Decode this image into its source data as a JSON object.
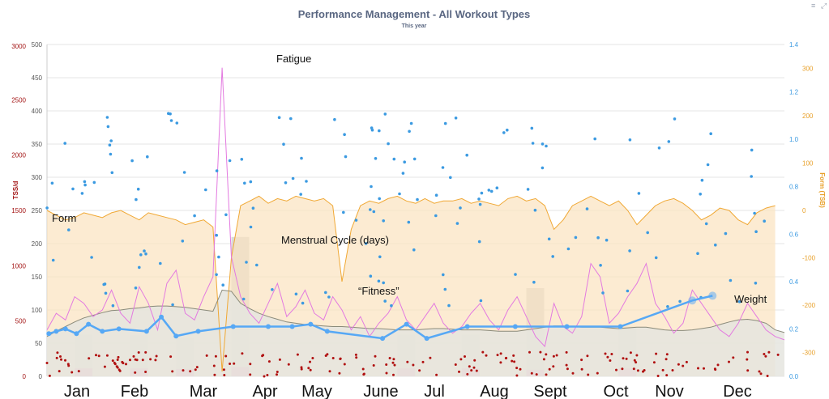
{
  "toolbar": {
    "menu_icon": "menu-icon",
    "expand_icon": "expand-icon",
    "menu_glyph": "≡",
    "expand_glyph": "⤢"
  },
  "chart_data": {
    "type": "line",
    "title": "Performance Management - All Workout Types",
    "subtitle": "This year",
    "months": [
      "Jan",
      "Feb",
      "Mar",
      "Apr",
      "May",
      "June",
      "Jul",
      "Aug",
      "Sept",
      "Oct",
      "Nov",
      "Dec"
    ],
    "axes": {
      "left_outer": {
        "label": "TSS/d",
        "ticks": [
          0,
          500,
          1000,
          1500,
          2000,
          2500,
          3000
        ],
        "range": [
          0,
          3000
        ],
        "color": "#a31515"
      },
      "left_inner": {
        "ticks": [
          0,
          50,
          100,
          150,
          200,
          250,
          300,
          350,
          400,
          450,
          500
        ],
        "range": [
          0,
          500
        ],
        "color": "#555555"
      },
      "right_inner": {
        "ticks": [
          0.0,
          0.2,
          0.4,
          0.6,
          0.8,
          1.0,
          1.2,
          1.4
        ],
        "range": [
          0,
          1.4
        ],
        "color": "#3b9ae1"
      },
      "right_outer": {
        "label": "Form (TSB)",
        "ticks": [
          -300,
          -200,
          -100,
          0,
          100,
          200,
          300
        ],
        "range": [
          -350,
          350
        ],
        "color": "#e8a02a"
      }
    },
    "annotations": {
      "fatigue": "Fatigue",
      "form": "Form",
      "menstrual": "Menstrual Cycle (days)",
      "fitness": "“Fitness”",
      "weight": "Weight"
    },
    "series": {
      "form_tsb": {
        "color": "#f0a834",
        "fill": "#fbe3bf",
        "values": [
          0,
          -10,
          -20,
          -15,
          -5,
          -10,
          -15,
          -5,
          0,
          -10,
          -20,
          -5,
          -10,
          -15,
          -20,
          -30,
          -25,
          -20,
          -35,
          -340,
          -100,
          10,
          20,
          30,
          15,
          25,
          20,
          30,
          25,
          20,
          25,
          10,
          -150,
          -40,
          10,
          20,
          15,
          25,
          30,
          20,
          15,
          25,
          15,
          20,
          20,
          25,
          15,
          20,
          15,
          10,
          25,
          30,
          20,
          25,
          10,
          -40,
          -20,
          10,
          20,
          30,
          20,
          10,
          20,
          0,
          -30,
          -10,
          10,
          20,
          25,
          15,
          0,
          -20,
          -10,
          5,
          0,
          -20,
          -30,
          -5,
          5,
          10
        ]
      },
      "fitness_ctl": {
        "color": "#8a8a7a",
        "fill": "#e5e5df",
        "values": [
          60,
          68,
          75,
          82,
          88,
          92,
          96,
          99,
          100,
          102,
          103,
          105,
          106,
          106,
          105,
          104,
          102,
          100,
          98,
          130,
          128,
          110,
          102,
          95,
          90,
          86,
          82,
          80,
          78,
          77,
          76,
          75,
          75,
          74,
          73,
          72,
          72,
          71,
          70,
          70,
          70,
          71,
          72,
          72,
          71,
          70,
          70,
          70,
          69,
          68,
          68,
          68,
          70,
          72,
          74,
          76,
          76,
          75,
          74,
          74,
          74,
          73,
          72,
          73,
          74,
          74,
          72,
          70,
          69,
          69,
          70,
          72,
          74,
          78,
          82,
          85,
          86,
          84,
          80,
          70,
          66
        ]
      },
      "fatigue_atl": {
        "color": "#e37ae0",
        "values": [
          70,
          95,
          85,
          120,
          110,
          90,
          100,
          130,
          95,
          80,
          135,
          110,
          70,
          140,
          160,
          95,
          85,
          120,
          150,
          465,
          180,
          120,
          95,
          80,
          110,
          140,
          90,
          105,
          130,
          95,
          85,
          120,
          100,
          70,
          90,
          60,
          80,
          95,
          120,
          85,
          70,
          90,
          110,
          80,
          65,
          75,
          95,
          110,
          85,
          70,
          100,
          120,
          90,
          60,
          45,
          110,
          75,
          65,
          90,
          170,
          150,
          80,
          95,
          120,
          140,
          170,
          110,
          90,
          65,
          80,
          130,
          110,
          90,
          70,
          60,
          80,
          110,
          90,
          70,
          60,
          55
        ]
      },
      "weight": {
        "color": "#56a8f5",
        "points": [
          [
            0.2,
            0.18
          ],
          [
            1.0,
            0.19
          ],
          [
            2.0,
            0.2
          ],
          [
            3.2,
            0.18
          ],
          [
            4.5,
            0.22
          ],
          [
            6.0,
            0.19
          ],
          [
            7.8,
            0.2
          ],
          [
            10.8,
            0.19
          ],
          [
            12.4,
            0.25
          ],
          [
            14.0,
            0.17
          ],
          [
            16.4,
            0.19
          ],
          [
            20.2,
            0.21
          ],
          [
            24.0,
            0.21
          ],
          [
            26.6,
            0.21
          ],
          [
            28.6,
            0.22
          ],
          [
            30.4,
            0.19
          ],
          [
            36.4,
            0.16
          ],
          [
            39.0,
            0.22
          ],
          [
            41.2,
            0.16
          ],
          [
            45.6,
            0.21
          ],
          [
            50.8,
            0.21
          ],
          [
            56.4,
            0.21
          ],
          [
            62.2,
            0.21
          ],
          [
            70.0,
            0.32
          ],
          [
            72.2,
            0.34
          ]
        ]
      },
      "menstrual_bars": {
        "color": "#d9d9d9",
        "accent": "#e040c8",
        "days": [
          [
            3.0,
            63,
            12
          ],
          [
            9.0,
            62,
            12
          ],
          [
            14.0,
            58,
            11
          ],
          [
            20.0,
            210,
            14
          ],
          [
            38.0,
            63,
            12
          ],
          [
            45.0,
            63,
            12
          ],
          [
            52.0,
            133,
            10
          ],
          [
            62.0,
            75,
            12
          ]
        ]
      }
    }
  }
}
